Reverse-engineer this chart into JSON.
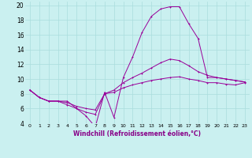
{
  "xlabel": "Windchill (Refroidissement éolien,°C)",
  "bg_color": "#caf0f0",
  "grid_color": "#aadddd",
  "line_color": "#990099",
  "xlim": [
    -0.5,
    23.5
  ],
  "ylim": [
    4,
    20.5
  ],
  "xticks": [
    0,
    1,
    2,
    3,
    4,
    5,
    6,
    7,
    8,
    9,
    10,
    11,
    12,
    13,
    14,
    15,
    16,
    17,
    18,
    19,
    20,
    21,
    22,
    23
  ],
  "yticks": [
    4,
    6,
    8,
    10,
    12,
    14,
    16,
    18,
    20
  ],
  "line1_x": [
    0,
    1,
    2,
    3,
    4,
    5,
    6,
    7,
    8,
    9,
    10,
    11,
    12,
    13,
    14,
    15,
    16,
    17,
    18,
    19,
    20,
    21,
    22,
    23
  ],
  "line1_y": [
    8.5,
    7.5,
    7.0,
    7.0,
    7.0,
    6.0,
    5.0,
    3.5,
    8.2,
    4.8,
    10.2,
    13.0,
    16.3,
    18.5,
    19.5,
    19.8,
    19.8,
    17.5,
    15.5,
    10.2,
    10.2,
    10.0,
    9.8,
    9.6
  ],
  "line2_x": [
    0,
    1,
    2,
    3,
    4,
    5,
    6,
    7,
    8,
    9,
    10,
    11,
    12,
    13,
    14,
    15,
    16,
    17,
    18,
    19,
    20,
    21,
    22,
    23
  ],
  "line2_y": [
    8.5,
    7.5,
    7.0,
    7.0,
    6.5,
    6.0,
    5.5,
    5.2,
    8.0,
    8.5,
    9.5,
    10.2,
    10.8,
    11.5,
    12.2,
    12.7,
    12.5,
    11.8,
    11.0,
    10.5,
    10.2,
    10.0,
    9.8,
    9.6
  ],
  "line3_x": [
    0,
    1,
    2,
    3,
    4,
    5,
    6,
    7,
    8,
    9,
    10,
    11,
    12,
    13,
    14,
    15,
    16,
    17,
    18,
    19,
    20,
    21,
    22,
    23
  ],
  "line3_y": [
    8.5,
    7.5,
    7.0,
    7.0,
    6.8,
    6.3,
    6.0,
    5.8,
    8.0,
    8.2,
    8.8,
    9.2,
    9.5,
    9.8,
    10.0,
    10.2,
    10.3,
    10.0,
    9.8,
    9.5,
    9.5,
    9.3,
    9.2,
    9.5
  ]
}
